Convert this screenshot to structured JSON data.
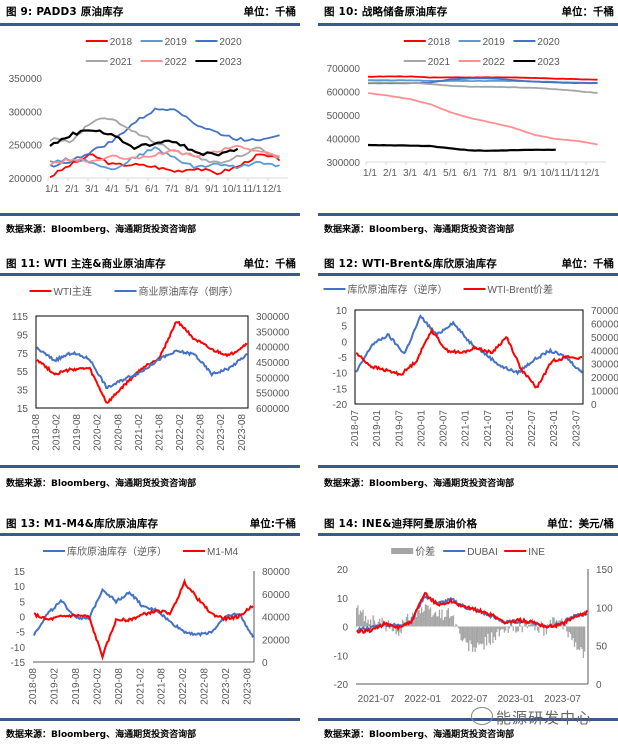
{
  "panels": [
    {
      "id": "fig9",
      "title": "图 9:  PADD3 原油库存",
      "unit": "单位：千桶",
      "source": "数据来源：Bloomberg、海通期货投资咨询部"
    },
    {
      "id": "fig10",
      "title": "图 10:    战略储备原油库存",
      "unit": "单位：千桶",
      "source": "数据来源：Bloomberg、海通期货投资咨询部"
    },
    {
      "id": "fig11",
      "title": "图 11:    WTI 主连&商业原油库存",
      "unit": "单位：千桶",
      "source": "数据来源：Bloomberg、海通期货投资咨询部"
    },
    {
      "id": "fig12",
      "title": "图 12:    WTI-Brent&库欣原油库存",
      "unit": "单位：千桶",
      "source": "数据来源：Bloomberg、海通期货投资咨询部"
    },
    {
      "id": "fig13",
      "title": "图 13:    M1-M4&库欣原油库存",
      "unit": "单位:千桶",
      "source": "数据来源：Bloomberg、海通期货投资咨询部"
    },
    {
      "id": "fig14",
      "title": "图 14:    INE&迪拜阿曼原油价格",
      "unit": "单位：美元/桶",
      "source": "数据来源：Bloomberg、海通期货投资咨询部"
    }
  ],
  "watermark": "能源研发中心",
  "colors": {
    "rule": "#3a5a8c",
    "red": "#ff0000",
    "lightblue": "#5b9bd5",
    "blue": "#4472c4",
    "gray": "#a5a5a5",
    "pink": "#ff8f8f",
    "black": "#000000"
  },
  "chart_data": [
    {
      "type": "line",
      "title": "PADD3 原油库存",
      "ylim": [
        200000,
        350000
      ],
      "yticks": [
        "350000",
        "300000",
        "250000",
        "200000"
      ],
      "categories": [
        "1/1",
        "2/1",
        "3/1",
        "4/1",
        "5/1",
        "6/1",
        "7/1",
        "8/1",
        "9/1",
        "10/1",
        "11/1",
        "12/1"
      ],
      "legend": "top",
      "series": [
        {
          "name": "2018",
          "color": "#ff0000",
          "values": [
            202000,
            220000,
            235000,
            220000,
            220000,
            217000,
            210000,
            215000,
            207000,
            217000,
            235000,
            228000
          ]
        },
        {
          "name": "2019",
          "color": "#5b9bd5",
          "values": [
            225000,
            228000,
            225000,
            212000,
            230000,
            245000,
            230000,
            215000,
            222000,
            215000,
            225000,
            218000
          ]
        },
        {
          "name": "2020",
          "color": "#4472c4",
          "values": [
            218000,
            225000,
            240000,
            255000,
            282000,
            302000,
            305000,
            280000,
            268000,
            258000,
            258000,
            265000
          ]
        },
        {
          "name": "2021",
          "color": "#a5a5a5",
          "values": [
            258000,
            255000,
            285000,
            290000,
            270000,
            255000,
            240000,
            232000,
            222000,
            232000,
            245000,
            228000
          ]
        },
        {
          "name": "2022",
          "color": "#ff8f8f",
          "values": [
            220000,
            228000,
            225000,
            232000,
            228000,
            235000,
            240000,
            232000,
            240000,
            248000,
            240000,
            232000
          ]
        },
        {
          "name": "2023",
          "color": "#000000",
          "values": [
            248000,
            265000,
            273000,
            265000,
            245000,
            252000,
            255000,
            238000,
            235000,
            242000
          ]
        }
      ]
    },
    {
      "type": "line",
      "title": "战略储备原油库存",
      "ylim": [
        300000,
        700000
      ],
      "yticks": [
        "700000",
        "600000",
        "500000",
        "400000",
        "300000"
      ],
      "categories": [
        "1/1",
        "2/1",
        "3/1",
        "4/1",
        "5/1",
        "6/1",
        "7/1",
        "8/1",
        "9/1",
        "10/1",
        "11/1",
        "12/1"
      ],
      "legend": "top",
      "series": [
        {
          "name": "2018",
          "color": "#ff0000",
          "values": [
            663000,
            664000,
            664000,
            660000,
            660000,
            660000,
            660000,
            660000,
            657000,
            655000,
            652000,
            650000
          ]
        },
        {
          "name": "2019",
          "color": "#5b9bd5",
          "values": [
            648000,
            648000,
            648000,
            645000,
            645000,
            645000,
            645000,
            645000,
            642000,
            640000,
            638000,
            636000
          ]
        },
        {
          "name": "2020",
          "color": "#4472c4",
          "values": [
            635000,
            635000,
            635000,
            638000,
            652000,
            656000,
            656000,
            648000,
            642000,
            638000,
            636000,
            636000
          ]
        },
        {
          "name": "2021",
          "color": "#a5a5a5",
          "values": [
            638000,
            638000,
            637000,
            632000,
            624000,
            620000,
            620000,
            618000,
            615000,
            610000,
            602000,
            594000
          ]
        },
        {
          "name": "2022",
          "color": "#ff8f8f",
          "values": [
            593000,
            582000,
            568000,
            545000,
            510000,
            485000,
            466000,
            445000,
            415000,
            398000,
            390000,
            375000
          ]
        },
        {
          "name": "2023",
          "color": "#000000",
          "values": [
            372000,
            371000,
            370000,
            368000,
            357000,
            349000,
            348000,
            350000,
            352000,
            352000
          ]
        }
      ]
    },
    {
      "type": "line",
      "title": "WTI 主连&商业原油库存",
      "legend": "top",
      "ylim": [
        15,
        115
      ],
      "y2lim": [
        600000,
        300000
      ],
      "yticks": [
        "115",
        "95",
        "75",
        "55",
        "35",
        "15"
      ],
      "y2ticks": [
        "300000",
        "350000",
        "400000",
        "450000",
        "500000",
        "550000",
        "600000"
      ],
      "categories": [
        "2018-08",
        "2019-02",
        "2019-08",
        "2020-02",
        "2020-08",
        "2021-02",
        "2021-08",
        "2022-02",
        "2022-08",
        "2023-02",
        "2023-08"
      ],
      "series": [
        {
          "name": "WTI主连",
          "color": "#ff0000",
          "axis": "left",
          "values": [
            68,
            52,
            57,
            58,
            20,
            40,
            58,
            70,
            110,
            90,
            78,
            72,
            85
          ]
        },
        {
          "name": "商业原油库存（倒序）",
          "color": "#4472c4",
          "axis": "right",
          "values": [
            405000,
            445000,
            420000,
            440000,
            535000,
            505000,
            480000,
            440000,
            415000,
            425000,
            490000,
            470000,
            425000
          ]
        }
      ]
    },
    {
      "type": "line",
      "title": "WTI-Brent&库欣原油库存",
      "legend": "top",
      "ylim": [
        -20,
        10
      ],
      "y2lim": [
        0,
        70000
      ],
      "yticks": [
        "10",
        "5",
        "0",
        "-5",
        "-10",
        "-15",
        "-20"
      ],
      "y2ticks": [
        "70000",
        "60000",
        "50000",
        "40000",
        "30000",
        "20000",
        "10000",
        "0"
      ],
      "categories": [
        "2018-07",
        "2019-01",
        "2019-07",
        "2020-01",
        "2020-07",
        "2021-01",
        "2021-07",
        "2022-01",
        "2022-07",
        "2023-01",
        "2023-07"
      ],
      "series": [
        {
          "name": "库欣原油库存（逆序）",
          "color": "#4472c4",
          "axis": "left",
          "values": [
            -10,
            -1,
            2,
            -4,
            8,
            2,
            6,
            0,
            -4,
            -8,
            -10,
            -6,
            -3,
            -5,
            -10
          ]
        },
        {
          "name": "WTI-Brent价差",
          "color": "#ff0000",
          "axis": "right",
          "values": [
            38000,
            28000,
            25000,
            22000,
            32000,
            55000,
            40000,
            38000,
            42000,
            38000,
            50000,
            25000,
            12000,
            32000,
            35000,
            34000
          ]
        }
      ]
    },
    {
      "type": "line",
      "title": "M1-M4&库欣原油库存",
      "legend": "top",
      "ylim": [
        -15,
        15
      ],
      "y2lim": [
        0,
        80000
      ],
      "yticks": [
        "15",
        "10",
        "5",
        "0",
        "-5",
        "-10",
        "-15"
      ],
      "y2ticks": [
        "80000",
        "60000",
        "40000",
        "20000",
        "0"
      ],
      "categories": [
        "2018-08",
        "2019-02",
        "2019-08",
        "2020-02",
        "2020-08",
        "2021-02",
        "2021-08",
        "2022-02",
        "2022-08",
        "2023-02",
        "2023-08"
      ],
      "series": [
        {
          "name": "库欣原油库存（逆序）",
          "color": "#4472c4",
          "axis": "left",
          "values": [
            -6,
            1,
            5,
            0,
            -1,
            9,
            5,
            8,
            3,
            2,
            -2,
            -5,
            -6,
            -5,
            0,
            1,
            -7
          ]
        },
        {
          "name": "M1-M4",
          "color": "#ff0000",
          "axis": "right",
          "values": [
            42000,
            37000,
            40000,
            41000,
            40000,
            5000,
            37000,
            37000,
            42000,
            45000,
            43000,
            70000,
            55000,
            42000,
            38000,
            40000,
            50000
          ]
        }
      ]
    },
    {
      "type": "line+bar",
      "title": "INE&迪拜阿曼原油价格",
      "legend": "top",
      "ylim": [
        -20,
        20
      ],
      "y2lim": [
        0,
        150
      ],
      "yticks": [
        "20",
        "10",
        "0",
        "-10",
        "-20"
      ],
      "y2ticks": [
        "150",
        "100",
        "50",
        "0"
      ],
      "categories": [
        "2021-07",
        "2022-01",
        "2022-07",
        "2023-01",
        "2023-07"
      ],
      "series": [
        {
          "name": "价差",
          "color": "#a5a5a5",
          "type": "bar",
          "axis": "left",
          "values": [
            6,
            2,
            1,
            -2,
            4,
            6,
            4,
            5,
            -6,
            -8,
            -4,
            -2,
            0,
            1,
            -1,
            2,
            -3,
            -10
          ]
        },
        {
          "name": "DUBAI",
          "color": "#4472c4",
          "axis": "right",
          "values": [
            71,
            73,
            78,
            76,
            82,
            115,
            105,
            110,
            100,
            95,
            88,
            80,
            82,
            80,
            75,
            78,
            88,
            92
          ]
        },
        {
          "name": "INE",
          "color": "#ff0000",
          "axis": "right",
          "values": [
            68,
            70,
            78,
            74,
            80,
            118,
            103,
            108,
            100,
            96,
            89,
            80,
            83,
            81,
            75,
            77,
            86,
            94
          ]
        }
      ]
    }
  ]
}
